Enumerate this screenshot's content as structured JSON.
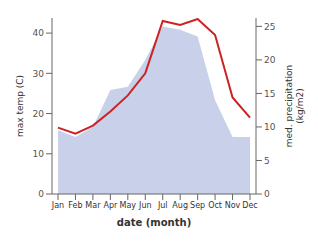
{
  "chart_data": {
    "type": "line",
    "categories": [
      "Jan",
      "Feb",
      "Mar",
      "Apr",
      "May",
      "Jun",
      "Jul",
      "Aug",
      "Sep",
      "Oct",
      "Nov",
      "Dec"
    ],
    "series": [
      {
        "type": "area",
        "axis": "y2",
        "color": "#c8d0ea",
        "values": [
          9.5,
          8.5,
          10.0,
          15.5,
          16.0,
          20.0,
          25.0,
          24.5,
          23.5,
          14.0,
          8.5,
          8.5
        ]
      },
      {
        "type": "line",
        "color": "#cc2222",
        "values": [
          16.5,
          15.0,
          17.0,
          20.5,
          24.5,
          30.0,
          43.0,
          42.0,
          43.5,
          39.5,
          24.0,
          19.0
        ]
      }
    ],
    "xlabel": "date (month)",
    "ylabel": "max temp (C)",
    "y2label": "med. precipitation\n(kg/m2)",
    "ylim": [
      0,
      43.75
    ],
    "yticks": [
      0,
      10,
      20,
      30,
      40
    ],
    "y2lim": [
      0,
      26.25
    ],
    "y2ticks": [
      0,
      5,
      10,
      15,
      20,
      25
    ],
    "grid": false
  }
}
